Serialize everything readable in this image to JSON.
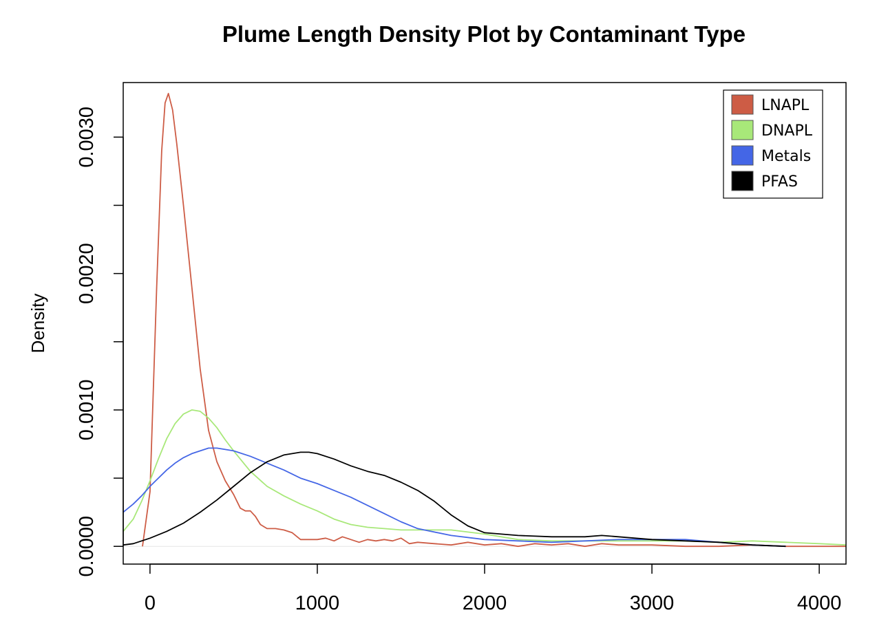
{
  "chart_data": {
    "type": "line",
    "title": "Plume Length Density Plot by Contaminant Type",
    "xlabel": "",
    "ylabel": "Density",
    "xlim": [
      -160,
      4160
    ],
    "ylim": [
      -0.00013,
      0.0034
    ],
    "x_ticks": [
      0,
      1000,
      2000,
      3000,
      4000
    ],
    "x_tick_labels": [
      "0",
      "1000",
      "2000",
      "3000",
      "4000"
    ],
    "y_ticks": [
      0.0,
      0.0005,
      0.001,
      0.0015,
      0.002,
      0.0025,
      0.003
    ],
    "y_tick_labels": [
      "0.0000",
      "",
      "0.0010",
      "",
      "0.0020",
      "",
      "0.0030"
    ],
    "grid": false,
    "legend_position": "top-right",
    "series": [
      {
        "name": "LNAPL",
        "color": "#CD5C45",
        "x": [
          -45,
          0,
          40,
          70,
          90,
          110,
          135,
          160,
          200,
          250,
          300,
          350,
          400,
          450,
          500,
          540,
          570,
          600,
          630,
          660,
          700,
          750,
          800,
          850,
          900,
          950,
          1000,
          1050,
          1100,
          1150,
          1200,
          1250,
          1300,
          1350,
          1400,
          1450,
          1500,
          1550,
          1600,
          1700,
          1800,
          1900,
          2000,
          2100,
          2200,
          2300,
          2400,
          2500,
          2600,
          2700,
          2800,
          2900,
          3000,
          3200,
          3400,
          3600,
          3800,
          4000,
          4160
        ],
        "y": [
          0.0,
          0.0004,
          0.0019,
          0.0029,
          0.00325,
          0.00332,
          0.0032,
          0.00295,
          0.0025,
          0.0019,
          0.0013,
          0.00085,
          0.00062,
          0.00048,
          0.00038,
          0.00028,
          0.00026,
          0.00026,
          0.00022,
          0.00016,
          0.00013,
          0.00013,
          0.00012,
          0.0001,
          5e-05,
          5e-05,
          5e-05,
          6e-05,
          4e-05,
          7e-05,
          5e-05,
          3e-05,
          5e-05,
          4e-05,
          5e-05,
          4e-05,
          6e-05,
          2e-05,
          3e-05,
          2e-05,
          1e-05,
          3e-05,
          1e-05,
          2e-05,
          0.0,
          2e-05,
          1e-05,
          2e-05,
          0.0,
          2e-05,
          1e-05,
          1e-05,
          1e-05,
          0.0,
          0.0,
          1e-05,
          0.0,
          0.0,
          0.0
        ]
      },
      {
        "name": "DNAPL",
        "color": "#A8E879",
        "x": [
          -160,
          -100,
          -50,
          0,
          50,
          100,
          150,
          200,
          250,
          300,
          350,
          400,
          450,
          500,
          600,
          700,
          800,
          900,
          1000,
          1100,
          1200,
          1300,
          1400,
          1500,
          1600,
          1800,
          2000,
          2200,
          2400,
          2600,
          2800,
          3000,
          3200,
          3400,
          3600,
          3800,
          4000,
          4160
        ],
        "y": [
          0.00011,
          0.0002,
          0.00033,
          0.00048,
          0.00064,
          0.00079,
          0.0009,
          0.00097,
          0.001,
          0.00099,
          0.00094,
          0.00087,
          0.00078,
          0.0007,
          0.00055,
          0.00044,
          0.00037,
          0.00031,
          0.00026,
          0.0002,
          0.00016,
          0.00014,
          0.00013,
          0.00012,
          0.00012,
          0.00012,
          9e-05,
          5e-05,
          4e-05,
          4e-05,
          4e-05,
          4e-05,
          4e-05,
          3e-05,
          4e-05,
          3e-05,
          2e-05,
          1e-05
        ]
      },
      {
        "name": "Metals",
        "color": "#4466E6",
        "x": [
          -160,
          -100,
          -50,
          0,
          50,
          100,
          150,
          200,
          250,
          300,
          350,
          400,
          450,
          500,
          600,
          700,
          800,
          900,
          1000,
          1100,
          1200,
          1300,
          1400,
          1500,
          1600,
          1800,
          2000,
          2200,
          2400,
          2600,
          2800,
          3000,
          3200,
          3400,
          3600,
          3800
        ],
        "y": [
          0.00025,
          0.00031,
          0.00037,
          0.00044,
          0.0005,
          0.00056,
          0.00061,
          0.00065,
          0.00068,
          0.0007,
          0.00072,
          0.00072,
          0.00071,
          0.0007,
          0.00066,
          0.00061,
          0.00056,
          0.0005,
          0.00046,
          0.00041,
          0.00036,
          0.0003,
          0.00024,
          0.00018,
          0.00013,
          8e-05,
          5e-05,
          4e-05,
          3e-05,
          4e-05,
          5e-05,
          5e-05,
          5e-05,
          3e-05,
          1e-05,
          0.0
        ]
      },
      {
        "name": "PFAS",
        "color": "#000000",
        "x": [
          -160,
          -100,
          0,
          100,
          200,
          300,
          400,
          500,
          600,
          700,
          800,
          900,
          950,
          1000,
          1100,
          1200,
          1300,
          1400,
          1500,
          1600,
          1700,
          1800,
          1900,
          2000,
          2100,
          2200,
          2400,
          2600,
          2700,
          2800,
          3000,
          3200,
          3400,
          3600,
          3800
        ],
        "y": [
          1e-05,
          2e-05,
          6e-05,
          0.00011,
          0.00017,
          0.00025,
          0.00034,
          0.00044,
          0.00054,
          0.00062,
          0.00067,
          0.00069,
          0.00069,
          0.00068,
          0.00064,
          0.00059,
          0.00055,
          0.00052,
          0.00047,
          0.00041,
          0.00033,
          0.00023,
          0.00015,
          0.0001,
          9e-05,
          8e-05,
          7e-05,
          7e-05,
          8e-05,
          7e-05,
          5e-05,
          4e-05,
          3e-05,
          1e-05,
          0.0
        ]
      }
    ]
  }
}
